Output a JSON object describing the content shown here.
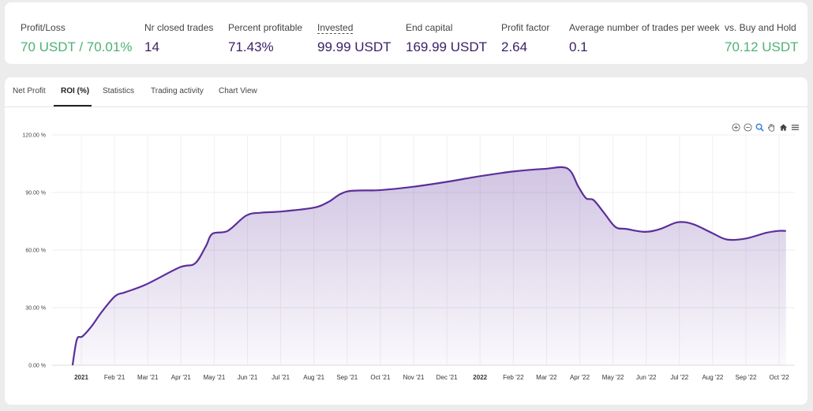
{
  "stats": [
    {
      "label": "Profit/Loss",
      "value": "70 USDT / 70.01%",
      "color": "green"
    },
    {
      "label": "Nr closed trades",
      "value": "14"
    },
    {
      "label": "Percent profitable",
      "value": "71.43%"
    },
    {
      "label": "Invested",
      "value": "99.99 USDT",
      "dotted": true
    },
    {
      "label": "End capital",
      "value": "169.99 USDT"
    },
    {
      "label": "Profit factor",
      "value": "2.64"
    },
    {
      "label": "Average number of trades per week",
      "value": "0.1"
    },
    {
      "label": "vs. Buy and Hold",
      "value": "70.12 USDT",
      "color": "green"
    }
  ],
  "tabs": [
    "Net Profit",
    "ROI (%)",
    "Statistics",
    "Trading activity",
    "Chart View"
  ],
  "active_tab": "ROI (%)",
  "toolbar_icons": [
    "zoom-in-icon",
    "zoom-out-icon",
    "selection-zoom-icon",
    "pan-hand-icon",
    "home-reset-icon",
    "menu-icon"
  ],
  "colors": {
    "accent": "#5b2f9a",
    "positive": "#4fb174",
    "value": "#3b2167"
  },
  "chart_data": {
    "type": "area",
    "ylim": [
      0,
      120
    ],
    "yticks": [
      "0.00 %",
      "30.00 %",
      "60.00 %",
      "90.00 %",
      "120.00 %"
    ],
    "xticks": [
      {
        "label": "2021",
        "bold": true
      },
      {
        "label": "Feb '21"
      },
      {
        "label": "Mar '21"
      },
      {
        "label": "Apr '21"
      },
      {
        "label": "May '21"
      },
      {
        "label": "Jun '21"
      },
      {
        "label": "Jul '21"
      },
      {
        "label": "Aug '21"
      },
      {
        "label": "Sep '21"
      },
      {
        "label": "Oct '21"
      },
      {
        "label": "Nov '21"
      },
      {
        "label": "Dec '21"
      },
      {
        "label": "2022",
        "bold": true
      },
      {
        "label": "Feb '22"
      },
      {
        "label": "Mar '22"
      },
      {
        "label": "Apr '22"
      },
      {
        "label": "May '22"
      },
      {
        "label": "Jun '22"
      },
      {
        "label": "Jul '22"
      },
      {
        "label": "Aug '22"
      },
      {
        "label": "Sep '22"
      },
      {
        "label": "Oct '22"
      }
    ],
    "grid": true,
    "series": [
      {
        "points": [
          [
            "2020-12-24",
            0
          ],
          [
            "2020-12-28",
            13.5
          ],
          [
            "2021-01-02",
            15
          ],
          [
            "2021-01-10",
            20
          ],
          [
            "2021-01-20",
            28
          ],
          [
            "2021-02-01",
            36
          ],
          [
            "2021-02-10",
            38
          ],
          [
            "2021-03-01",
            42
          ],
          [
            "2021-04-01",
            51
          ],
          [
            "2021-04-15",
            53
          ],
          [
            "2021-04-25",
            62
          ],
          [
            "2021-05-01",
            68.5
          ],
          [
            "2021-05-15",
            70
          ],
          [
            "2021-06-01",
            78
          ],
          [
            "2021-06-15",
            79.5
          ],
          [
            "2021-07-01",
            80
          ],
          [
            "2021-08-01",
            82
          ],
          [
            "2021-08-15",
            85
          ],
          [
            "2021-09-01",
            90.5
          ],
          [
            "2021-10-01",
            91.2
          ],
          [
            "2021-11-01",
            93
          ],
          [
            "2021-12-01",
            95.5
          ],
          [
            "2022-01-01",
            98.5
          ],
          [
            "2022-02-01",
            101
          ],
          [
            "2022-03-01",
            102.3
          ],
          [
            "2022-03-22",
            102.5
          ],
          [
            "2022-04-01",
            93
          ],
          [
            "2022-04-08",
            87
          ],
          [
            "2022-04-15",
            86
          ],
          [
            "2022-04-25",
            79
          ],
          [
            "2022-05-05",
            72
          ],
          [
            "2022-05-15",
            71
          ],
          [
            "2022-06-01",
            69.5
          ],
          [
            "2022-06-15",
            71
          ],
          [
            "2022-07-01",
            74.5
          ],
          [
            "2022-07-15",
            73.5
          ],
          [
            "2022-08-01",
            69
          ],
          [
            "2022-08-15",
            65.5
          ],
          [
            "2022-09-01",
            66
          ],
          [
            "2022-09-20",
            69
          ],
          [
            "2022-10-01",
            70
          ],
          [
            "2022-10-08",
            70
          ]
        ]
      }
    ]
  }
}
